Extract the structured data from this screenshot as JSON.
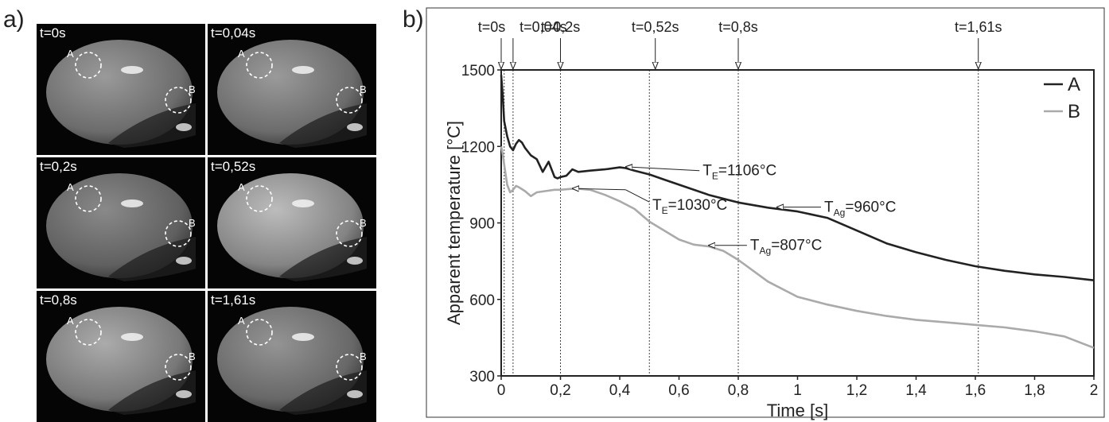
{
  "panel_a": {
    "label": "a)",
    "frames": [
      {
        "time": "t=0s",
        "mark_a": "A",
        "mark_b": "B",
        "brightness": 0.55
      },
      {
        "time": "t=0,04s",
        "mark_a": "A",
        "mark_b": "B",
        "brightness": 0.55
      },
      {
        "time": "t=0,2s",
        "mark_a": "A",
        "mark_b": "B",
        "brightness": 0.45
      },
      {
        "time": "t=0,52s",
        "mark_a": "A",
        "mark_b": "B",
        "brightness": 0.75
      },
      {
        "time": "t=0,8s",
        "mark_a": "A",
        "mark_b": "B",
        "brightness": 0.65
      },
      {
        "time": "t=1,61s",
        "mark_a": "A",
        "mark_b": "B",
        "brightness": 0.52
      }
    ]
  },
  "panel_b": {
    "label": "b)"
  },
  "chart_data": {
    "type": "line",
    "xlabel": "Time [s]",
    "ylabel": "Apparent temperature [°C]",
    "xlim": [
      0,
      2
    ],
    "ylim": [
      300,
      1500
    ],
    "x_ticks": [
      0,
      0.2,
      0.4,
      0.6,
      0.8,
      1,
      1.2,
      1.4,
      1.6,
      1.8,
      2
    ],
    "x_tick_labels": [
      "0",
      "0,2",
      "0,4",
      "0,6",
      "0,8",
      "1",
      "1,2",
      "1,4",
      "1,6",
      "1,8",
      "2"
    ],
    "y_ticks": [
      300,
      600,
      900,
      1200,
      1500
    ],
    "y_tick_labels": [
      "300",
      "600",
      "900",
      "1200",
      "1500"
    ],
    "legend_position": "top-right",
    "series": [
      {
        "name": "A",
        "color": "#222222",
        "x": [
          0,
          0.005,
          0.01,
          0.02,
          0.03,
          0.04,
          0.05,
          0.06,
          0.07,
          0.08,
          0.1,
          0.12,
          0.14,
          0.16,
          0.18,
          0.19,
          0.2,
          0.22,
          0.24,
          0.26,
          0.3,
          0.35,
          0.4,
          0.42,
          0.45,
          0.5,
          0.55,
          0.6,
          0.7,
          0.8,
          0.9,
          1.0,
          1.1,
          1.2,
          1.3,
          1.4,
          1.5,
          1.6,
          1.7,
          1.8,
          1.9,
          2.0
        ],
        "y": [
          1480,
          1400,
          1300,
          1240,
          1200,
          1185,
          1210,
          1225,
          1215,
          1195,
          1165,
          1150,
          1100,
          1140,
          1080,
          1075,
          1080,
          1085,
          1110,
          1100,
          1105,
          1110,
          1118,
          1115,
          1105,
          1090,
          1070,
          1050,
          1010,
          980,
          960,
          945,
          920,
          870,
          820,
          785,
          755,
          730,
          712,
          698,
          688,
          675
        ]
      },
      {
        "name": "B",
        "color": "#aaaaaa",
        "x": [
          0,
          0.005,
          0.01,
          0.02,
          0.03,
          0.04,
          0.05,
          0.06,
          0.08,
          0.1,
          0.12,
          0.15,
          0.18,
          0.2,
          0.25,
          0.3,
          0.35,
          0.4,
          0.45,
          0.5,
          0.55,
          0.6,
          0.65,
          0.7,
          0.75,
          0.8,
          0.9,
          1.0,
          1.1,
          1.2,
          1.3,
          1.4,
          1.5,
          1.6,
          1.7,
          1.8,
          1.9,
          2.0
        ],
        "y": [
          1200,
          1170,
          1130,
          1050,
          1020,
          1030,
          1045,
          1040,
          1025,
          1005,
          1020,
          1025,
          1030,
          1030,
          1035,
          1030,
          1010,
          985,
          955,
          905,
          870,
          835,
          815,
          808,
          790,
          755,
          670,
          610,
          580,
          555,
          535,
          520,
          510,
          500,
          490,
          475,
          455,
          410
        ]
      }
    ],
    "vlines": [
      0.01,
      0.04,
      0.2,
      0.5,
      0.8,
      1.61
    ],
    "time_markers": [
      {
        "label": "t=0s",
        "x": 0
      },
      {
        "label": "t=0,04s",
        "x": 0.04
      },
      {
        "label": "t=0,2s",
        "x": 0.2
      },
      {
        "label": "t=0,52s",
        "x": 0.52
      },
      {
        "label": "t=0,8s",
        "x": 0.8
      },
      {
        "label": "t=1,61s",
        "x": 1.61
      }
    ],
    "annotations": [
      {
        "sym": "T",
        "sub": "E",
        "rest": "=1106°C",
        "point": [
          0.41,
          1120
        ],
        "label_at": [
          0.68,
          1105
        ]
      },
      {
        "sym": "T",
        "sub": "E",
        "rest": "=1030°C",
        "point": [
          0.23,
          1035
        ],
        "label_at": [
          0.51,
          970
        ],
        "anchor": [
          0.42,
          1030
        ]
      },
      {
        "sym": "T",
        "sub": "Ag",
        "rest": "=960°C",
        "point": [
          0.92,
          962
        ],
        "label_at": [
          1.09,
          962
        ]
      },
      {
        "sym": "T",
        "sub": "Ag",
        "rest": "=807°C",
        "point": [
          0.69,
          812
        ],
        "label_at": [
          0.84,
          812
        ]
      }
    ]
  }
}
